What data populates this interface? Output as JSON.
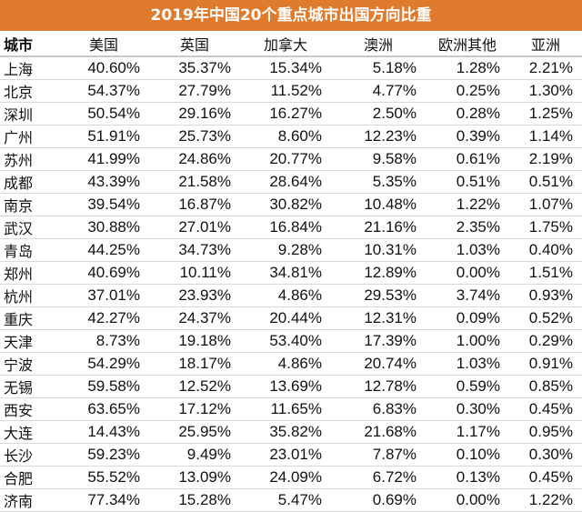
{
  "chart_data": {
    "type": "table",
    "title": "2019年中国20个重点城市出国方向比重",
    "columns": [
      "城市",
      "美国",
      "英国",
      "加拿大",
      "澳洲",
      "欧洲其他",
      "亚洲"
    ],
    "rows": [
      [
        "上海",
        "40.60%",
        "35.37%",
        "15.34%",
        "5.18%",
        "1.28%",
        "2.21%"
      ],
      [
        "北京",
        "54.37%",
        "27.79%",
        "11.52%",
        "4.77%",
        "0.25%",
        "1.30%"
      ],
      [
        "深圳",
        "50.54%",
        "29.16%",
        "16.27%",
        "2.50%",
        "0.28%",
        "1.25%"
      ],
      [
        "广州",
        "51.91%",
        "25.73%",
        "8.60%",
        "12.23%",
        "0.39%",
        "1.14%"
      ],
      [
        "苏州",
        "41.99%",
        "24.86%",
        "20.77%",
        "9.58%",
        "0.61%",
        "2.19%"
      ],
      [
        "成都",
        "43.39%",
        "21.58%",
        "28.64%",
        "5.35%",
        "0.51%",
        "0.51%"
      ],
      [
        "南京",
        "39.54%",
        "16.87%",
        "30.82%",
        "10.48%",
        "1.22%",
        "1.07%"
      ],
      [
        "武汉",
        "30.88%",
        "27.01%",
        "16.84%",
        "21.16%",
        "2.35%",
        "1.75%"
      ],
      [
        "青岛",
        "44.25%",
        "34.73%",
        "9.28%",
        "10.31%",
        "1.03%",
        "0.40%"
      ],
      [
        "郑州",
        "40.69%",
        "10.11%",
        "34.81%",
        "12.89%",
        "0.00%",
        "1.51%"
      ],
      [
        "杭州",
        "37.01%",
        "23.93%",
        "4.86%",
        "29.53%",
        "3.74%",
        "0.93%"
      ],
      [
        "重庆",
        "42.27%",
        "24.37%",
        "20.44%",
        "12.31%",
        "0.09%",
        "0.52%"
      ],
      [
        "天津",
        "8.73%",
        "19.18%",
        "53.40%",
        "17.39%",
        "1.00%",
        "0.29%"
      ],
      [
        "宁波",
        "54.29%",
        "18.17%",
        "4.86%",
        "20.74%",
        "1.03%",
        "0.91%"
      ],
      [
        "无锡",
        "59.58%",
        "12.52%",
        "13.69%",
        "12.78%",
        "0.59%",
        "0.85%"
      ],
      [
        "西安",
        "63.65%",
        "17.12%",
        "11.65%",
        "6.83%",
        "0.30%",
        "0.45%"
      ],
      [
        "大连",
        "14.43%",
        "25.95%",
        "35.82%",
        "21.68%",
        "1.17%",
        "0.95%"
      ],
      [
        "长沙",
        "59.23%",
        "9.49%",
        "23.01%",
        "7.87%",
        "0.10%",
        "0.30%"
      ],
      [
        "合肥",
        "55.52%",
        "13.09%",
        "24.09%",
        "6.72%",
        "0.13%",
        "0.45%"
      ],
      [
        "济南",
        "77.34%",
        "15.28%",
        "5.47%",
        "0.69%",
        "0.00%",
        "1.22%"
      ]
    ]
  },
  "colors": {
    "title_background": "#e07a2c",
    "title_text": "#ffffff",
    "cell_text": "#111111",
    "row_divider": "#d9d9d9"
  }
}
